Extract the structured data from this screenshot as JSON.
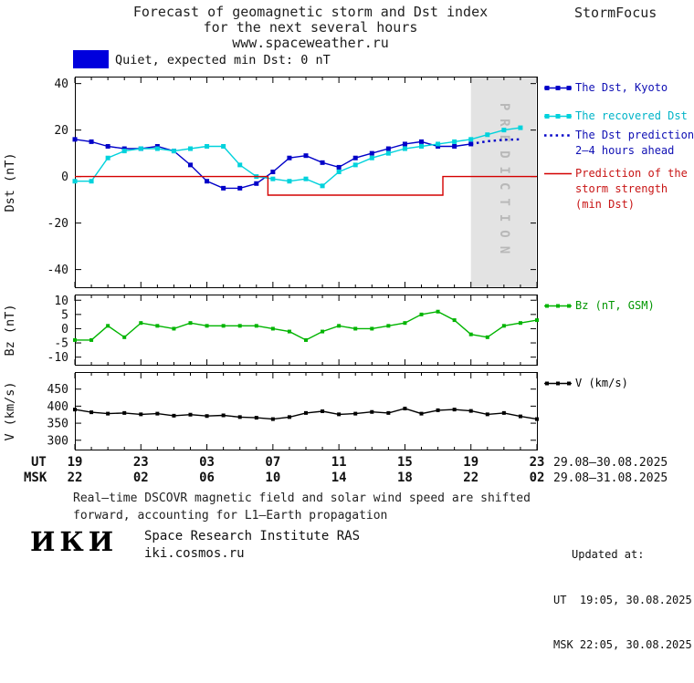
{
  "header": {
    "title_line1": "Forecast of geomagnetic storm and Dst index",
    "title_line2": "for the next several hours",
    "url": "www.spaceweather.ru",
    "brand": "StormFocus"
  },
  "status": {
    "text": "Quiet, expected min Dst: 0 nT",
    "swatch_color": "#0000dd"
  },
  "chart_data": [
    {
      "id": "dst",
      "type": "line",
      "title": "Forecast of geomagnetic storm and Dst index for the next several hours",
      "ylabel": "Dst (nT)",
      "xlim": [
        0,
        28
      ],
      "ylim": [
        -48,
        43
      ],
      "yticks": [
        40,
        20,
        0,
        -20,
        -40
      ],
      "grid": false,
      "prediction_band": {
        "from": 24,
        "to": 28,
        "label": "PREDICTION",
        "fill": "#e3e3e3",
        "text_color": "#b8b8b8"
      },
      "series": [
        {
          "name": "The Dst, Kyoto",
          "color": "#0000c8",
          "style": "solid",
          "marker": "square",
          "x": [
            0,
            1,
            2,
            3,
            4,
            5,
            6,
            7,
            8,
            9,
            10,
            11,
            12,
            13,
            14,
            15,
            16,
            17,
            18,
            19,
            20,
            21,
            22,
            23,
            24
          ],
          "values": [
            16,
            15,
            13,
            12,
            12,
            13,
            11,
            5,
            -2,
            -5,
            -5,
            -3,
            2,
            8,
            9,
            6,
            4,
            8,
            10,
            12,
            14,
            15,
            13,
            13,
            14
          ]
        },
        {
          "name": "The recovered Dst",
          "color": "#00d2dc",
          "style": "solid",
          "marker": "square",
          "x": [
            0,
            1,
            2,
            3,
            4,
            5,
            6,
            7,
            8,
            9,
            10,
            11,
            12,
            13,
            14,
            15,
            16,
            17,
            18,
            19,
            20,
            21,
            22,
            23,
            24,
            25,
            26,
            27
          ],
          "values": [
            -2,
            -2,
            8,
            11,
            12,
            12,
            11,
            12,
            13,
            13,
            5,
            0,
            -1,
            -2,
            -1,
            -4,
            2,
            5,
            8,
            10,
            12,
            13,
            14,
            15,
            16,
            18,
            20,
            21
          ]
        },
        {
          "name": "The Dst prediction 2-4 hours ahead",
          "color": "#0000c8",
          "style": "dotted",
          "marker": "none",
          "x": [
            24,
            25,
            26,
            27
          ],
          "values": [
            14,
            15.2,
            15.8,
            16
          ]
        },
        {
          "name": "Prediction of the storm strength (min Dst)",
          "color": "#d40000",
          "style": "solid",
          "marker": "none",
          "x": [
            0,
            11.7,
            11.7,
            22.3,
            22.3,
            28
          ],
          "values": [
            0,
            0,
            -8,
            -8,
            0,
            0
          ]
        }
      ]
    },
    {
      "id": "bz",
      "type": "line",
      "title": "",
      "ylabel": "Bz (nT)",
      "xlim": [
        0,
        28
      ],
      "ylim": [
        -13,
        12
      ],
      "yticks": [
        10,
        5,
        0,
        -5,
        -10
      ],
      "grid": false,
      "series": [
        {
          "name": "Bz (nT, GSM)",
          "color": "#00b400",
          "style": "solid",
          "marker": "square",
          "x": [
            0,
            1,
            2,
            3,
            4,
            5,
            6,
            7,
            8,
            9,
            10,
            11,
            12,
            13,
            14,
            15,
            16,
            17,
            18,
            19,
            20,
            21,
            22,
            23,
            24,
            25,
            26,
            27,
            28
          ],
          "values": [
            -4,
            -4,
            1,
            -3,
            2,
            1,
            0,
            2,
            1,
            1,
            1,
            1,
            0,
            -1,
            -4,
            -1,
            1,
            0,
            0,
            1,
            2,
            5,
            6,
            3,
            -2,
            -3,
            1,
            2,
            3
          ]
        }
      ]
    },
    {
      "id": "v",
      "type": "line",
      "title": "",
      "ylabel": "V (km/s)",
      "xlim": [
        0,
        28
      ],
      "ylim": [
        270,
        500
      ],
      "yticks": [
        450,
        400,
        350,
        300
      ],
      "grid": false,
      "series": [
        {
          "name": "V (km/s)",
          "color": "#000000",
          "style": "solid",
          "marker": "square",
          "x": [
            0,
            1,
            2,
            3,
            4,
            5,
            6,
            7,
            8,
            9,
            10,
            11,
            12,
            13,
            14,
            15,
            16,
            17,
            18,
            19,
            20,
            21,
            22,
            23,
            24,
            25,
            26,
            27,
            28
          ],
          "values": [
            390,
            382,
            378,
            380,
            376,
            378,
            372,
            375,
            371,
            373,
            368,
            366,
            362,
            368,
            380,
            385,
            376,
            378,
            383,
            380,
            393,
            378,
            388,
            390,
            386,
            376,
            380,
            370,
            362
          ]
        }
      ]
    }
  ],
  "xaxis": {
    "tick_hours": [
      0,
      4,
      8,
      12,
      16,
      20,
      24,
      28
    ],
    "row_ut": {
      "label": "UT",
      "ticks": [
        "19",
        "23",
        "03",
        "07",
        "11",
        "15",
        "19",
        "23"
      ],
      "date_range": "29.08–30.08.2025"
    },
    "row_msk": {
      "label": "MSK",
      "ticks": [
        "22",
        "02",
        "06",
        "10",
        "14",
        "18",
        "22",
        "02"
      ],
      "date_range": "29.08–31.08.2025"
    }
  },
  "legend": {
    "entries": [
      {
        "lines": [
          "The Dst, Kyoto"
        ],
        "series_color": "#0000c8",
        "text_color": "#0f0fb4",
        "sample": "squares"
      },
      {
        "lines": [
          "The recovered Dst"
        ],
        "series_color": "#00d2dc",
        "text_color": "#00b4c8",
        "sample": "squares"
      },
      {
        "lines": [
          "The Dst prediction",
          "2–4 hours ahead"
        ],
        "series_color": "#0000c8",
        "text_color": "#0f0fb4",
        "sample": "dotted"
      },
      {
        "lines": [
          "Prediction of the",
          "storm strength",
          "(min Dst)"
        ],
        "series_color": "#d40000",
        "text_color": "#c81414",
        "sample": "line"
      },
      {
        "lines": [
          "Bz (nT, GSM)"
        ],
        "series_color": "#00b400",
        "text_color": "#009600",
        "sample": "squares-small"
      },
      {
        "lines": [
          "V (km/s)"
        ],
        "series_color": "#000000",
        "text_color": "#000000",
        "sample": "squares-small"
      }
    ]
  },
  "note_line1": "Real–time DSCOVR magnetic field and solar wind speed are shifted",
  "note_line2": "forward, accounting for L1–Earth propagation",
  "footer": {
    "logo": "ИКИ",
    "institute": "Space Research Institute RAS",
    "site": "iki.cosmos.ru",
    "updated_label": "Updated at:",
    "updated_ut": "UT  19:05, 30.08.2025",
    "updated_msk": "MSK 22:05, 30.08.2025"
  }
}
